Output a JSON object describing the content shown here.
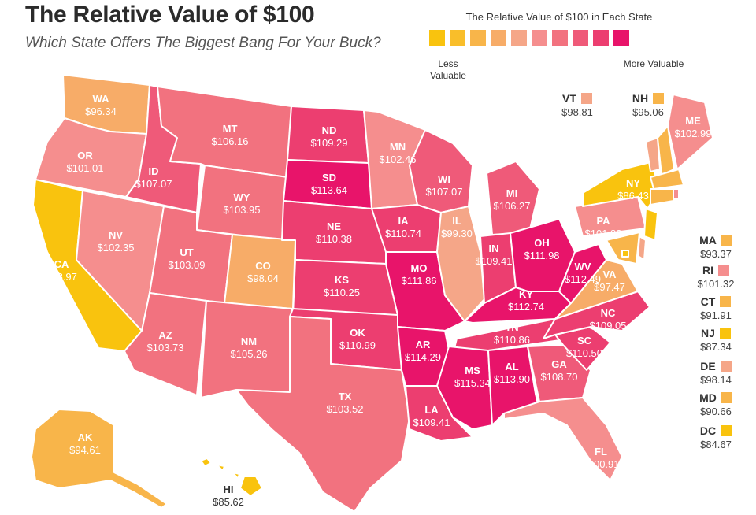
{
  "title": "The Relative Value of $100",
  "subtitle": "Which State Offers The Biggest Bang For Your Buck?",
  "legend": {
    "title": "The Relative Value of $100 in Each State",
    "low_label": "Less Valuable",
    "high_label": "More Valuable",
    "colors": [
      "#F9C30E",
      "#F9BE2A",
      "#F8B54A",
      "#F7AC68",
      "#F5A688",
      "#F58E8E",
      "#F2727F",
      "#EF5A79",
      "#EC3E70",
      "#E8146A"
    ]
  },
  "states": [
    {
      "code": "WA",
      "value": "$96.34",
      "color": "#F7AC68"
    },
    {
      "code": "OR",
      "value": "$101.01",
      "color": "#F58E8E"
    },
    {
      "code": "CA",
      "value": "$88.97",
      "color": "#F9C30E"
    },
    {
      "code": "ID",
      "value": "$107.07",
      "color": "#EF5A79"
    },
    {
      "code": "NV",
      "value": "$102.35",
      "color": "#F58E8E"
    },
    {
      "code": "MT",
      "value": "$106.16",
      "color": "#F2727F"
    },
    {
      "code": "WY",
      "value": "$103.95",
      "color": "#F2727F"
    },
    {
      "code": "UT",
      "value": "$103.09",
      "color": "#F2727F"
    },
    {
      "code": "AZ",
      "value": "$103.73",
      "color": "#F2727F"
    },
    {
      "code": "CO",
      "value": "$98.04",
      "color": "#F7AC68"
    },
    {
      "code": "NM",
      "value": "$105.26",
      "color": "#F2727F"
    },
    {
      "code": "ND",
      "value": "$109.29",
      "color": "#EC3E70"
    },
    {
      "code": "SD",
      "value": "$113.64",
      "color": "#E8146A"
    },
    {
      "code": "NE",
      "value": "$110.38",
      "color": "#EC3E70"
    },
    {
      "code": "KS",
      "value": "$110.25",
      "color": "#EC3E70"
    },
    {
      "code": "OK",
      "value": "$110.99",
      "color": "#EC3E70"
    },
    {
      "code": "TX",
      "value": "$103.52",
      "color": "#F2727F"
    },
    {
      "code": "MN",
      "value": "$102.46",
      "color": "#F58E8E"
    },
    {
      "code": "IA",
      "value": "$110.74",
      "color": "#EC3E70"
    },
    {
      "code": "MO",
      "value": "$111.86",
      "color": "#E8146A"
    },
    {
      "code": "AR",
      "value": "$114.29",
      "color": "#E8146A"
    },
    {
      "code": "LA",
      "value": "$109.41",
      "color": "#EC3E70"
    },
    {
      "code": "WI",
      "value": "$107.07",
      "color": "#EF5A79"
    },
    {
      "code": "IL",
      "value": "$99.30",
      "color": "#F5A688"
    },
    {
      "code": "MI",
      "value": "$106.27",
      "color": "#EF5A79"
    },
    {
      "code": "IN",
      "value": "$109.41",
      "color": "#EC3E70"
    },
    {
      "code": "OH",
      "value": "$111.98",
      "color": "#E8146A"
    },
    {
      "code": "KY",
      "value": "$112.74",
      "color": "#E8146A"
    },
    {
      "code": "TN",
      "value": "$110.86",
      "color": "#EC3E70"
    },
    {
      "code": "MS",
      "value": "$115.34",
      "color": "#E8146A"
    },
    {
      "code": "AL",
      "value": "$113.90",
      "color": "#E8146A"
    },
    {
      "code": "GA",
      "value": "$108.70",
      "color": "#EF5A79"
    },
    {
      "code": "FL",
      "value": "$100.91",
      "color": "#F58E8E"
    },
    {
      "code": "SC",
      "value": "$110.50",
      "color": "#EC3E70"
    },
    {
      "code": "NC",
      "value": "$109.05",
      "color": "#EC3E70"
    },
    {
      "code": "VA",
      "value": "$97.47",
      "color": "#F7AC68"
    },
    {
      "code": "WV",
      "value": "$112.49",
      "color": "#E8146A"
    },
    {
      "code": "PA",
      "value": "$101.83",
      "color": "#F58E8E"
    },
    {
      "code": "NY",
      "value": "$86.43",
      "color": "#F9C30E"
    },
    {
      "code": "ME",
      "value": "$102.99",
      "color": "#F58E8E"
    },
    {
      "code": "VT",
      "value": "$98.81",
      "color": "#F5A688"
    },
    {
      "code": "NH",
      "value": "$95.06",
      "color": "#F8B54A"
    },
    {
      "code": "MA",
      "value": "$93.37",
      "color": "#F8B54A"
    },
    {
      "code": "RI",
      "value": "$101.32",
      "color": "#F58E8E"
    },
    {
      "code": "CT",
      "value": "$91.91",
      "color": "#F8B54A"
    },
    {
      "code": "NJ",
      "value": "$87.34",
      "color": "#F9C30E"
    },
    {
      "code": "DE",
      "value": "$98.14",
      "color": "#F5A688"
    },
    {
      "code": "MD",
      "value": "$90.66",
      "color": "#F8B54A"
    },
    {
      "code": "DC",
      "value": "$84.67",
      "color": "#F9C30E"
    },
    {
      "code": "AK",
      "value": "$94.61",
      "color": "#F8B54A"
    },
    {
      "code": "HI",
      "value": "$85.62",
      "color": "#F9C30E"
    }
  ]
}
